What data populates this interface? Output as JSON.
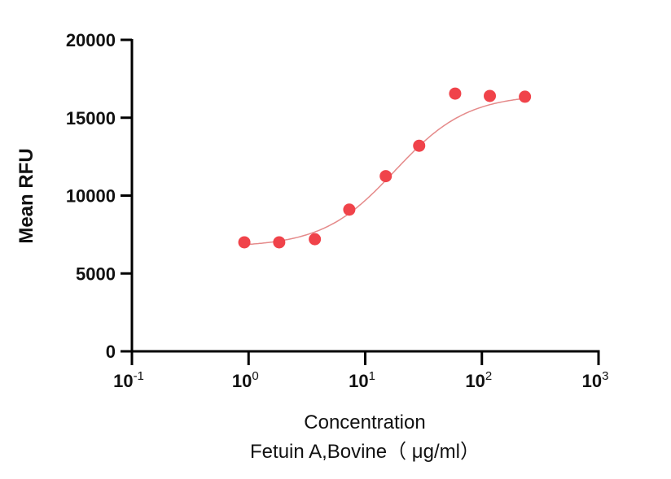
{
  "chart_data": {
    "type": "scatter",
    "title": "",
    "xlabel": "Concentration",
    "xlabel_line2": "Fetuin A,Bovine（ μg/ml）",
    "ylabel": "Mean RFU",
    "xscale": "log",
    "xlim": [
      0.1,
      1000
    ],
    "ylim": [
      0,
      20000
    ],
    "x_ticks": [
      {
        "exp": "-1",
        "value": 0.1
      },
      {
        "exp": "0",
        "value": 1
      },
      {
        "exp": "1",
        "value": 10
      },
      {
        "exp": "2",
        "value": 100
      },
      {
        "exp": "3",
        "value": 1000
      }
    ],
    "y_ticks": [
      0,
      5000,
      10000,
      15000,
      20000
    ],
    "y_tick_labels": [
      "0",
      "5000",
      "10000",
      "15000",
      "20000"
    ],
    "grid": false,
    "legend": null,
    "series": [
      {
        "name": "Fetuin A,Bovine",
        "color": "#f0434a",
        "marker": "circle",
        "x": [
          0.92,
          1.83,
          3.7,
          7.3,
          15,
          29,
          59,
          117,
          234
        ],
        "y": [
          7000,
          7000,
          7200,
          9100,
          11250,
          13200,
          16550,
          16400,
          16350
        ]
      }
    ],
    "fit_curve": {
      "type": "4PL sigmoid",
      "color": "#e58a8a",
      "bottom": 6700,
      "top": 16500,
      "ec50": 18,
      "hill": 1.4
    }
  }
}
